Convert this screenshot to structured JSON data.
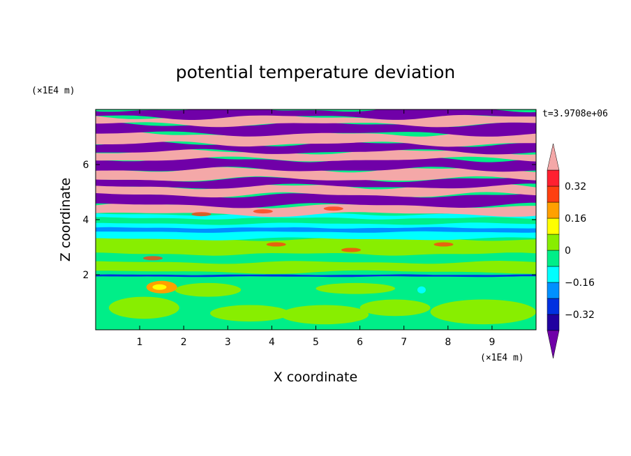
{
  "chart_data": {
    "type": "heatmap",
    "title": "potential temperature deviation",
    "xlabel": "X coordinate",
    "ylabel": "Z coordinate",
    "x_unit": "(×1E4 m)",
    "y_unit": "(×1E4 m)",
    "time_label": "t=3.9708e+06",
    "xlim": [
      0,
      10
    ],
    "ylim": [
      0,
      8
    ],
    "x_ticks": [
      1,
      2,
      3,
      4,
      5,
      6,
      7,
      8,
      9
    ],
    "y_ticks": [
      2,
      4,
      6
    ],
    "colorbar": {
      "levels": [
        -0.4,
        -0.32,
        -0.24,
        -0.16,
        -0.08,
        0,
        0.08,
        0.16,
        0.24,
        0.32,
        0.4
      ],
      "labels": [
        "0.32",
        "0.16",
        "0",
        "−0.16",
        "−0.32"
      ],
      "label_values": [
        0.32,
        0.16,
        0,
        -0.16,
        -0.32
      ],
      "colors": [
        "#7000a8",
        "#2000a0",
        "#0030e0",
        "#0090ff",
        "#00ffff",
        "#00ee88",
        "#88ee00",
        "#ffff00",
        "#ffa000",
        "#ff4010",
        "#ff2030",
        "#f4a8a8"
      ],
      "extend": "both"
    },
    "regions": [
      {
        "z": [
          0,
          0.6
        ],
        "value": 0.04
      },
      {
        "z": [
          0.6,
          1.0
        ],
        "value": 0.0
      },
      {
        "z": [
          1.0,
          1.9
        ],
        "value": 0.04
      },
      {
        "z": [
          1.9,
          2.1
        ],
        "value": -0.2
      },
      {
        "z": [
          2.1,
          3.3
        ],
        "value": 0.04
      },
      {
        "z": [
          3.3,
          4.2
        ],
        "value": -0.1
      },
      {
        "z": [
          4.2,
          8.0
        ],
        "value": "alternating ±0.45"
      }
    ]
  }
}
